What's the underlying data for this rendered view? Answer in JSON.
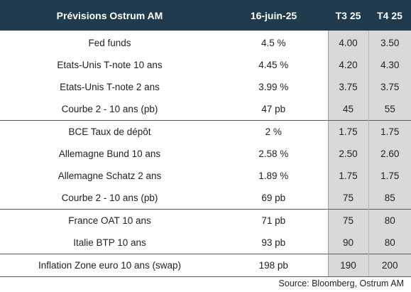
{
  "table": {
    "headers": {
      "label": "Prévisions Ostrum AM",
      "date": "16-juin-25",
      "q3": "T3 25",
      "q4": "T4 25"
    },
    "rows": [
      {
        "label": "Fed funds",
        "current": "4.5 %",
        "q3": "4.00",
        "q4": "3.50"
      },
      {
        "label": "Etats-Unis T-note 10 ans",
        "current": "4.45 %",
        "q3": "4.20",
        "q4": "4.30"
      },
      {
        "label": "Etats-Unis T-note 2 ans",
        "current": "3.99 %",
        "q3": "3.75",
        "q4": "3.75"
      },
      {
        "label": "Courbe 2 - 10 ans (pb)",
        "current": "47 pb",
        "q3": "45",
        "q4": "55"
      },
      {
        "label": "BCE Taux de dépôt",
        "current": "2 %",
        "q3": "1.75",
        "q4": "1.75"
      },
      {
        "label": "Allemagne Bund 10 ans",
        "current": "2.58 %",
        "q3": "2.50",
        "q4": "2.60"
      },
      {
        "label": "Allemagne Schatz 2 ans",
        "current": "1.89 %",
        "q3": "1.75",
        "q4": "1.75"
      },
      {
        "label": "Courbe 2 - 10 ans (pb)",
        "current": "69 pb",
        "q3": "75",
        "q4": "85"
      },
      {
        "label": "France OAT 10 ans",
        "current": "71 pb",
        "q3": "75",
        "q4": "80"
      },
      {
        "label": "Italie BTP 10 ans",
        "current": "93 pb",
        "q3": "90",
        "q4": "80"
      },
      {
        "label": "Inflation Zone euro 10 ans (swap)",
        "current": "198 pb",
        "q3": "190",
        "q4": "200"
      }
    ]
  },
  "source": "Source: Bloomberg, Ostrum AM"
}
